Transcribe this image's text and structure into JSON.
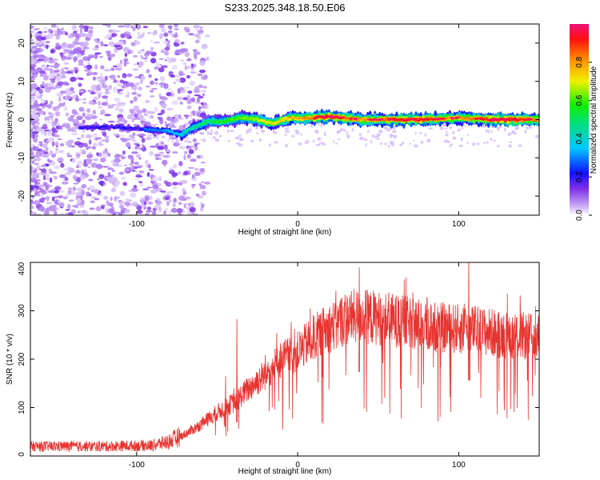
{
  "title": "S233.2025.348.18.50.E06",
  "chart_data": [
    {
      "type": "heatmap",
      "name": "spectrogram",
      "xlabel": "Height of straight line (km)",
      "ylabel": "Frequency (Hz)",
      "xlim": [
        -166,
        150
      ],
      "ylim": [
        -25,
        25
      ],
      "xticks": [
        -100,
        0,
        100
      ],
      "yticks": [
        -20,
        -10,
        0,
        10,
        20
      ],
      "colorbar": {
        "label": "Normalized spectral amplitude",
        "range": [
          0,
          1
        ],
        "ticks": [
          0.0,
          0.2,
          0.4,
          0.6,
          0.8
        ]
      },
      "signal_track": {
        "description": "dominant Doppler ridge",
        "x": [
          -130,
          -110,
          -95,
          -80,
          -72,
          -65,
          -55,
          -45,
          -35,
          -25,
          -15,
          -5,
          5,
          20,
          40,
          60,
          80,
          100,
          120,
          150
        ],
        "frequency": [
          -2,
          -2,
          -2.5,
          -3,
          -4,
          -2,
          -0.5,
          -0.5,
          0.5,
          0,
          -1,
          0.5,
          0.3,
          0.8,
          0,
          0,
          0,
          0.5,
          0,
          0
        ]
      }
    },
    {
      "type": "line",
      "name": "snr",
      "xlabel": "Height of straight line (km)",
      "ylabel": "SNR (10 * v/v)",
      "xlim": [
        -166,
        150
      ],
      "ylim": [
        0,
        400
      ],
      "xticks": [
        -100,
        0,
        100
      ],
      "yticks": [
        0,
        100,
        200,
        300,
        400
      ],
      "color": "#e8332f",
      "envelope": {
        "x": [
          -166,
          -120,
          -90,
          -80,
          -70,
          -60,
          -50,
          -40,
          -30,
          -20,
          -10,
          0,
          10,
          20,
          30,
          40,
          50,
          60,
          70,
          80,
          90,
          100,
          110,
          120,
          130,
          140,
          150
        ],
        "mean": [
          20,
          20,
          22,
          30,
          45,
          65,
          90,
          110,
          140,
          170,
          200,
          215,
          245,
          265,
          285,
          290,
          285,
          280,
          275,
          270,
          265,
          262,
          260,
          255,
          250,
          248,
          245
        ]
      },
      "spikes": [
        {
          "x": -38,
          "y": 283
        },
        {
          "x": -45,
          "y": 165
        },
        {
          "x": 38,
          "y": 390
        },
        {
          "x": 106,
          "y": 415
        }
      ]
    }
  ]
}
